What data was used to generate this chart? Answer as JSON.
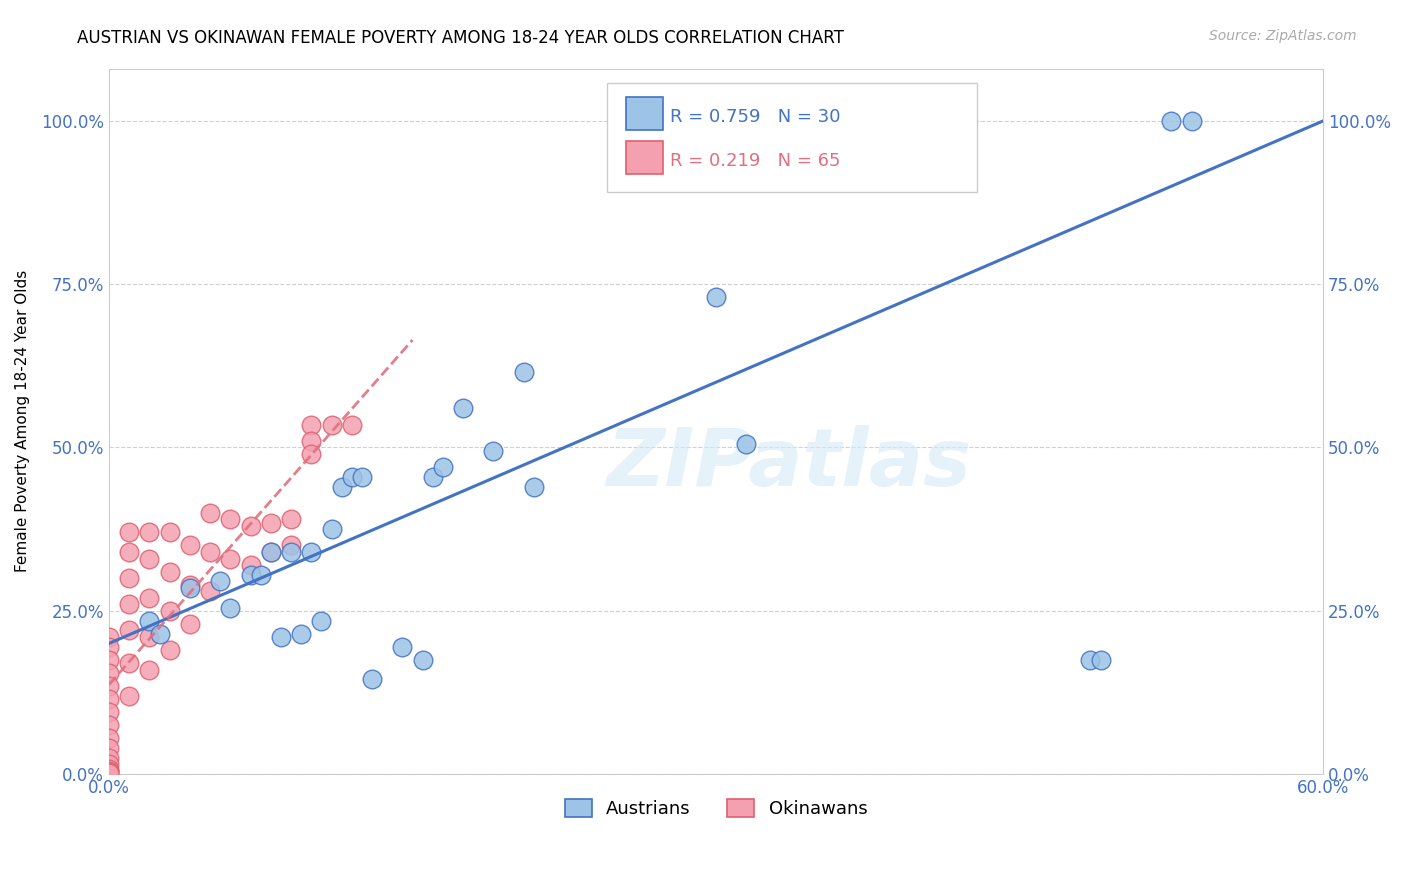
{
  "title": "AUSTRIAN VS OKINAWAN FEMALE POVERTY AMONG 18-24 YEAR OLDS CORRELATION CHART",
  "source": "Source: ZipAtlas.com",
  "ylabel": "Female Poverty Among 18-24 Year Olds",
  "xlim": [
    0.0,
    0.6
  ],
  "ylim": [
    0.0,
    1.08
  ],
  "xticks": [
    0.0,
    0.12,
    0.24,
    0.36,
    0.48,
    0.6
  ],
  "xtick_labels": [
    "0.0%",
    "",
    "",
    "",
    "",
    "60.0%"
  ],
  "yticks": [
    0.0,
    0.25,
    0.5,
    0.75,
    1.0
  ],
  "ytick_labels": [
    "0.0%",
    "25.0%",
    "50.0%",
    "75.0%",
    "100.0%"
  ],
  "axis_color": "#4472c4",
  "grid_color": "#d0d0d0",
  "austrians_color": "#9dc3e6",
  "austrians_edge": "#4472c4",
  "okinawans_color": "#f4a0b0",
  "okinawans_edge": "#e06070",
  "reg_austrians_color": "#4472c4",
  "reg_okinawans_color": "#e07080",
  "watermark_text": "ZIPatlas",
  "austrians_x": [
    0.02,
    0.025,
    0.04,
    0.055,
    0.06,
    0.07,
    0.075,
    0.08,
    0.085,
    0.09,
    0.095,
    0.1,
    0.105,
    0.11,
    0.115,
    0.12,
    0.125,
    0.13,
    0.145,
    0.155,
    0.16,
    0.165,
    0.175,
    0.19,
    0.205,
    0.21,
    0.3,
    0.315,
    0.485,
    0.49,
    0.525,
    0.535
  ],
  "austrians_y": [
    0.235,
    0.215,
    0.285,
    0.295,
    0.255,
    0.305,
    0.305,
    0.34,
    0.21,
    0.34,
    0.215,
    0.34,
    0.235,
    0.375,
    0.44,
    0.455,
    0.455,
    0.145,
    0.195,
    0.175,
    0.455,
    0.47,
    0.56,
    0.495,
    0.615,
    0.44,
    0.73,
    0.505,
    0.175,
    0.175,
    1.0,
    1.0
  ],
  "okinawans_x": [
    0.0,
    0.0,
    0.0,
    0.0,
    0.0,
    0.0,
    0.0,
    0.0,
    0.0,
    0.0,
    0.0,
    0.0,
    0.0,
    0.0,
    0.0,
    0.0,
    0.01,
    0.01,
    0.01,
    0.01,
    0.01,
    0.01,
    0.01,
    0.02,
    0.02,
    0.02,
    0.02,
    0.02,
    0.03,
    0.03,
    0.03,
    0.03,
    0.04,
    0.04,
    0.04,
    0.05,
    0.05,
    0.05,
    0.06,
    0.06,
    0.07,
    0.07,
    0.08,
    0.08,
    0.09,
    0.09,
    0.1,
    0.1,
    0.1,
    0.11,
    0.12
  ],
  "okinawans_y": [
    0.21,
    0.195,
    0.175,
    0.155,
    0.135,
    0.115,
    0.095,
    0.075,
    0.055,
    0.04,
    0.025,
    0.015,
    0.008,
    0.005,
    0.003,
    0.001,
    0.37,
    0.34,
    0.3,
    0.26,
    0.22,
    0.17,
    0.12,
    0.37,
    0.33,
    0.27,
    0.21,
    0.16,
    0.37,
    0.31,
    0.25,
    0.19,
    0.35,
    0.29,
    0.23,
    0.4,
    0.34,
    0.28,
    0.39,
    0.33,
    0.38,
    0.32,
    0.385,
    0.34,
    0.39,
    0.35,
    0.535,
    0.51,
    0.49,
    0.535,
    0.535
  ]
}
